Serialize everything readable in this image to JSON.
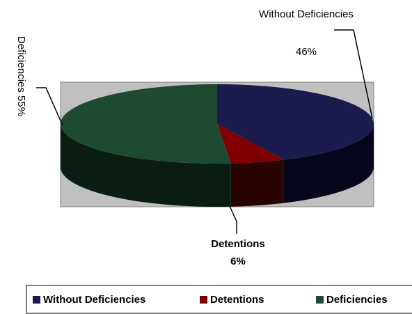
{
  "chart_data": {
    "type": "pie",
    "categories": [
      "Without Deficiencies",
      "Detentions",
      "Deficiencies"
    ],
    "values": [
      46,
      6,
      55
    ],
    "value_labels": [
      "46%",
      "6%",
      "55%"
    ],
    "colors": [
      "#1b1b4d",
      "#7f0000",
      "#1e4a32"
    ],
    "side_colors": [
      "#05051c",
      "#2a0303",
      "#0a1d12"
    ],
    "legend": "bottom"
  }
}
